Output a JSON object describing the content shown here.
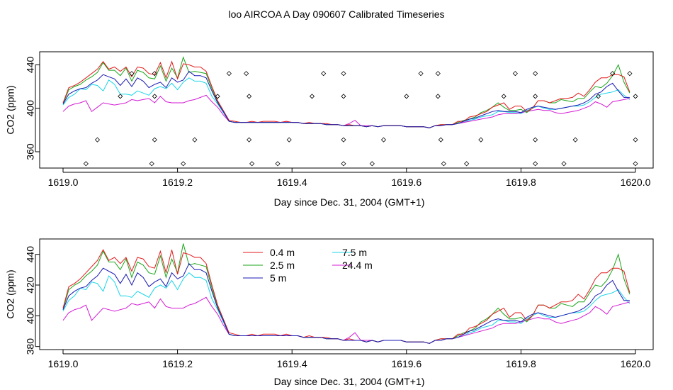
{
  "title": "loo AIRCOA A  Day 090607  Calibrated Timeseries",
  "colors": {
    "s04": "#e41a1c",
    "s25": "#1aa61a",
    "s5": "#1a1ab4",
    "s75": "#19d4e8",
    "s244": "#d41ad4",
    "flag": "#000000"
  },
  "chart_data": [
    {
      "type": "scatter",
      "title": "",
      "xlabel": "Day since Dec. 31, 2004 (GMT+1)",
      "ylabel": "CO2 (ppm)",
      "xlim": [
        1619.0,
        1620.0
      ],
      "ylim": [
        345,
        452
      ],
      "xticks": [
        "1619.0",
        "1619.2",
        "1619.4",
        "1619.6",
        "1619.8",
        "1620.0"
      ],
      "yticks": [
        "360",
        "400",
        "440"
      ],
      "x": [
        1619.0,
        1619.01,
        1619.02,
        1619.03,
        1619.04,
        1619.05,
        1619.06,
        1619.07,
        1619.08,
        1619.09,
        1619.1,
        1619.11,
        1619.12,
        1619.13,
        1619.14,
        1619.15,
        1619.16,
        1619.17,
        1619.18,
        1619.19,
        1619.2,
        1619.21,
        1619.22,
        1619.23,
        1619.24,
        1619.25,
        1619.26,
        1619.27,
        1619.28,
        1619.29,
        1619.3,
        1619.31,
        1619.32,
        1619.33,
        1619.34,
        1619.35,
        1619.36,
        1619.37,
        1619.38,
        1619.39,
        1619.4,
        1619.41,
        1619.42,
        1619.43,
        1619.44,
        1619.45,
        1619.46,
        1619.47,
        1619.48,
        1619.49,
        1619.5,
        1619.51,
        1619.52,
        1619.53,
        1619.54,
        1619.55,
        1619.56,
        1619.57,
        1619.58,
        1619.59,
        1619.6,
        1619.61,
        1619.62,
        1619.63,
        1619.64,
        1619.65,
        1619.66,
        1619.67,
        1619.68,
        1619.69,
        1619.7,
        1619.71,
        1619.72,
        1619.73,
        1619.74,
        1619.75,
        1619.76,
        1619.77,
        1619.78,
        1619.79,
        1619.8,
        1619.81,
        1619.82,
        1619.83,
        1619.84,
        1619.85,
        1619.86,
        1619.87,
        1619.88,
        1619.89,
        1619.9,
        1619.91,
        1619.92,
        1619.93,
        1619.94,
        1619.95,
        1619.96,
        1619.97,
        1619.98,
        1619.99
      ],
      "series": [
        {
          "color": "s04",
          "values": [
            405,
            419,
            421,
            424,
            428,
            432,
            436,
            443,
            436,
            438,
            434,
            438,
            429,
            438,
            437,
            432,
            431,
            442,
            428,
            443,
            427,
            441,
            440,
            438,
            438,
            434,
            420,
            407,
            398,
            389,
            388,
            387,
            387,
            388,
            387,
            388,
            388,
            388,
            387,
            388,
            387,
            387,
            386,
            387,
            386,
            386,
            386,
            385,
            385,
            384,
            385,
            384,
            384,
            383,
            384,
            383,
            384,
            384,
            384,
            384,
            383,
            383,
            383,
            383,
            382,
            384,
            385,
            385,
            385,
            388,
            388,
            392,
            393,
            395,
            397,
            401,
            403,
            405,
            399,
            402,
            402,
            397,
            400,
            407,
            407,
            405,
            407,
            409,
            409,
            410,
            414,
            411,
            417,
            424,
            428,
            428,
            431,
            431,
            429,
            415
          ]
        },
        {
          "color": "s25",
          "values": [
            404,
            417,
            420,
            422,
            426,
            429,
            433,
            442,
            435,
            435,
            430,
            437,
            425,
            435,
            433,
            428,
            427,
            439,
            425,
            437,
            428,
            447,
            433,
            434,
            433,
            432,
            418,
            406,
            397,
            388,
            387,
            387,
            387,
            387,
            387,
            387,
            387,
            387,
            387,
            387,
            387,
            387,
            386,
            386,
            386,
            386,
            385,
            385,
            385,
            384,
            384,
            384,
            384,
            383,
            384,
            383,
            384,
            384,
            384,
            384,
            383,
            383,
            383,
            383,
            382,
            384,
            385,
            385,
            385,
            387,
            389,
            390,
            392,
            396,
            398,
            401,
            405,
            401,
            398,
            398,
            399,
            396,
            400,
            407,
            407,
            405,
            405,
            408,
            407,
            406,
            409,
            409,
            415,
            420,
            419,
            423,
            430,
            440,
            424,
            414
          ]
        },
        {
          "color": "s5",
          "values": [
            404,
            413,
            416,
            418,
            419,
            423,
            426,
            431,
            429,
            427,
            421,
            427,
            420,
            428,
            425,
            419,
            422,
            424,
            419,
            428,
            424,
            426,
            434,
            430,
            430,
            428,
            416,
            405,
            397,
            388,
            387,
            387,
            387,
            387,
            387,
            387,
            387,
            387,
            387,
            387,
            387,
            387,
            386,
            386,
            386,
            386,
            385,
            385,
            385,
            384,
            384,
            384,
            384,
            383,
            384,
            383,
            384,
            384,
            384,
            384,
            383,
            383,
            383,
            383,
            382,
            384,
            384,
            385,
            385,
            386,
            388,
            390,
            391,
            393,
            395,
            397,
            398,
            397,
            397,
            397,
            396,
            399,
            401,
            402,
            401,
            400,
            399,
            400,
            401,
            402,
            403,
            405,
            408,
            413,
            415,
            420,
            423,
            416,
            410,
            410
          ]
        },
        {
          "color": "s75",
          "values": [
            403,
            410,
            413,
            418,
            417,
            422,
            421,
            416,
            426,
            422,
            413,
            413,
            412,
            416,
            414,
            412,
            418,
            420,
            418,
            423,
            417,
            424,
            428,
            425,
            425,
            423,
            411,
            404,
            396,
            388,
            387,
            387,
            387,
            387,
            387,
            387,
            387,
            387,
            387,
            387,
            387,
            387,
            386,
            386,
            386,
            386,
            385,
            385,
            385,
            384,
            384,
            384,
            384,
            383,
            384,
            383,
            384,
            384,
            384,
            384,
            383,
            383,
            383,
            383,
            382,
            384,
            384,
            385,
            385,
            386,
            387,
            389,
            390,
            392,
            393,
            394,
            397,
            397,
            396,
            396,
            395,
            398,
            400,
            402,
            400,
            399,
            399,
            400,
            401,
            402,
            402,
            403,
            406,
            410,
            413,
            414,
            415,
            417,
            412,
            408
          ]
        },
        {
          "color": "s244",
          "values": [
            397,
            402,
            404,
            405,
            407,
            397,
            401,
            405,
            404,
            403,
            404,
            405,
            408,
            407,
            408,
            409,
            405,
            411,
            406,
            405,
            405,
            405,
            407,
            408,
            410,
            412,
            406,
            401,
            394,
            388,
            387,
            387,
            387,
            387,
            387,
            387,
            387,
            387,
            387,
            388,
            387,
            387,
            386,
            386,
            386,
            386,
            385,
            385,
            385,
            384,
            386,
            389,
            384,
            384,
            384,
            383,
            384,
            384,
            384,
            384,
            383,
            383,
            383,
            383,
            382,
            384,
            384,
            385,
            385,
            386,
            387,
            388,
            389,
            390,
            391,
            392,
            394,
            395,
            395,
            395,
            396,
            397,
            398,
            399,
            398,
            398,
            396,
            395,
            396,
            397,
            398,
            400,
            402,
            406,
            404,
            401,
            406,
            407,
            408,
            409
          ]
        }
      ],
      "flag_points": [
        [
          1619.04,
          349
        ],
        [
          1619.06,
          371
        ],
        [
          1619.1,
          411
        ],
        [
          1619.12,
          432
        ],
        [
          1619.16,
          432
        ],
        [
          1619.16,
          411
        ],
        [
          1619.16,
          371
        ],
        [
          1619.155,
          349
        ],
        [
          1619.21,
          349
        ],
        [
          1619.23,
          371
        ],
        [
          1619.27,
          411
        ],
        [
          1619.29,
          432
        ],
        [
          1619.32,
          432
        ],
        [
          1619.325,
          411
        ],
        [
          1619.325,
          371
        ],
        [
          1619.33,
          349
        ],
        [
          1619.375,
          349
        ],
        [
          1619.395,
          371
        ],
        [
          1619.435,
          411
        ],
        [
          1619.455,
          432
        ],
        [
          1619.49,
          432
        ],
        [
          1619.49,
          411
        ],
        [
          1619.49,
          371
        ],
        [
          1619.49,
          349
        ],
        [
          1619.54,
          349
        ],
        [
          1619.56,
          371
        ],
        [
          1619.6,
          411
        ],
        [
          1619.625,
          432
        ],
        [
          1619.655,
          432
        ],
        [
          1619.655,
          411
        ],
        [
          1619.66,
          371
        ],
        [
          1619.665,
          349
        ],
        [
          1619.705,
          349
        ],
        [
          1619.73,
          371
        ],
        [
          1619.77,
          411
        ],
        [
          1619.79,
          432
        ],
        [
          1619.825,
          432
        ],
        [
          1619.825,
          411
        ],
        [
          1619.825,
          371
        ],
        [
          1619.825,
          349
        ],
        [
          1619.875,
          349
        ],
        [
          1619.895,
          371
        ],
        [
          1619.935,
          411
        ],
        [
          1619.96,
          432
        ],
        [
          1619.99,
          432
        ],
        [
          1620.0,
          411
        ],
        [
          1620.0,
          371
        ],
        [
          1620.0,
          349
        ]
      ]
    },
    {
      "type": "line",
      "title": "",
      "xlabel": "Day since Dec. 31, 2004 (GMT+1)",
      "ylabel": "CO2 (ppm)",
      "xlim": [
        1619.0,
        1620.0
      ],
      "ylim": [
        378,
        450
      ],
      "xticks": [
        "1619.0",
        "1619.2",
        "1619.4",
        "1619.6",
        "1619.8",
        "1620.0"
      ],
      "yticks": [
        "380",
        "400",
        "420",
        "440"
      ],
      "legend": {
        "placement": "top-left",
        "items": [
          {
            "label": "0.4 m",
            "color": "s04"
          },
          {
            "label": "2.5 m",
            "color": "s25"
          },
          {
            "label": "5 m",
            "color": "s5"
          },
          {
            "label": "7.5 m",
            "color": "s75"
          },
          {
            "label": "24.4 m",
            "color": "s244"
          }
        ]
      },
      "series_ref": "same values as first panel"
    }
  ]
}
